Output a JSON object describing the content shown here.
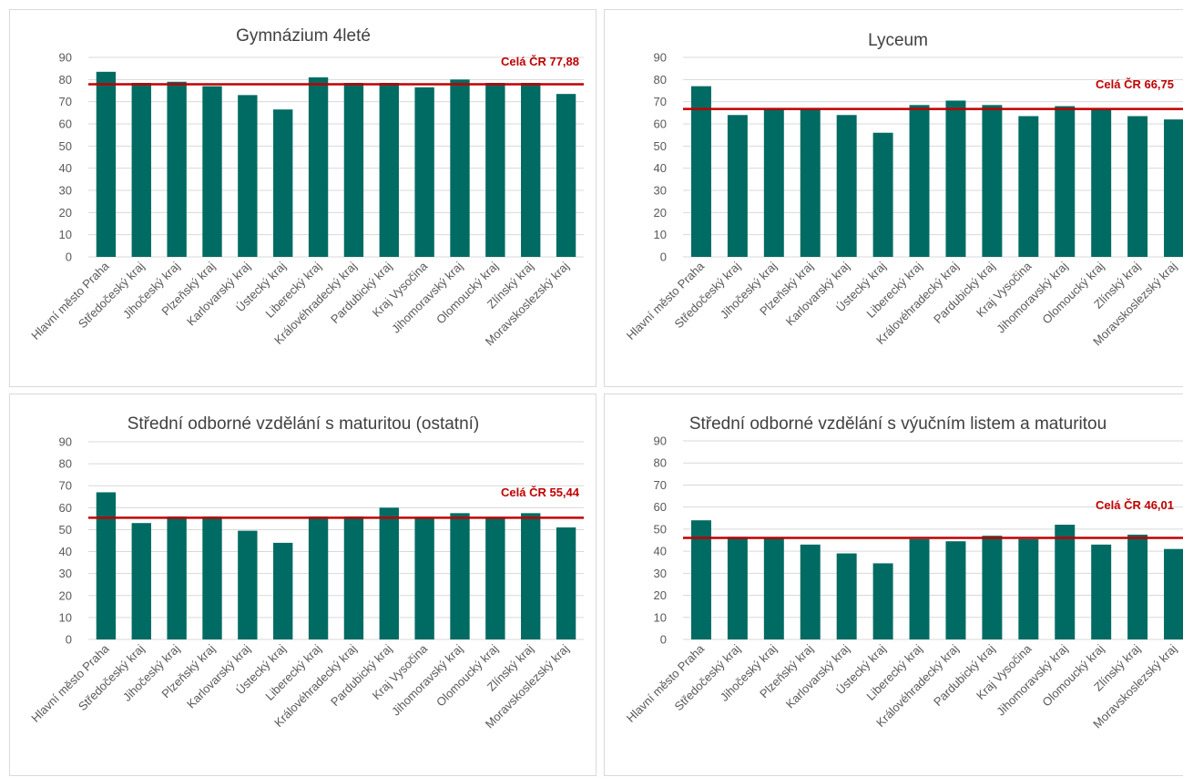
{
  "colors": {
    "bar": "#006b63",
    "reference_line": "#c00000",
    "gridline": "#d9d9d9",
    "text": "#595959"
  },
  "chart_data": [
    {
      "type": "bar",
      "title": "Gymnázium 4leté",
      "categories": [
        "Hlavní město Praha",
        "Středočeský kraj",
        "Jihočeský kraj",
        "Plzeňský kraj",
        "Karlovarský kraj",
        "Ústecký kraj",
        "Liberecký kraj",
        "Královéhradecký kraj",
        "Pardubický kraj",
        "Kraj Vysočina",
        "Jihomoravský kraj",
        "Olomoucký kraj",
        "Zlínský kraj",
        "Moravskoslezský kraj"
      ],
      "values": [
        83.5,
        78.5,
        79,
        77,
        73,
        66.5,
        81,
        78.5,
        78.5,
        76.5,
        80,
        78.5,
        78.5,
        73.5
      ],
      "reference": {
        "label": "Celá ČR 77,88",
        "value": 77.88
      },
      "ylim": [
        0,
        90
      ],
      "yticks": [
        0,
        10,
        20,
        30,
        40,
        50,
        60,
        70,
        80,
        90
      ],
      "grid": true
    },
    {
      "type": "bar",
      "title": "Lyceum",
      "categories": [
        "Hlavní město Praha",
        "Středočeský kraj",
        "Jihočeský kraj",
        "Plzeňský kraj",
        "Karlovarský kraj",
        "Ústecký kraj",
        "Liberecký kraj",
        "Královéhradecký kraj",
        "Pardubický kraj",
        "Kraj Vysočina",
        "Jihomoravský kraj",
        "Olomoucký kraj",
        "Zlínský kraj",
        "Moravskoslezský kraj"
      ],
      "values": [
        77,
        64,
        67,
        67,
        64,
        56,
        68.5,
        70.5,
        68.5,
        63.5,
        68,
        67,
        63.5,
        62
      ],
      "reference": {
        "label": "Celá ČR 66,75",
        "value": 66.75
      },
      "ylim": [
        0,
        90
      ],
      "yticks": [
        0,
        10,
        20,
        30,
        40,
        50,
        60,
        70,
        80,
        90
      ],
      "grid": true
    },
    {
      "type": "bar",
      "title": "Střední odborné vzdělání s maturitou (ostatní)",
      "categories": [
        "Hlavní město Praha",
        "Středočeský kraj",
        "Jihočeský kraj",
        "Plzeňský kraj",
        "Karlovarský kraj",
        "Ústecký kraj",
        "Liberecký kraj",
        "Královéhradecký kraj",
        "Pardubický kraj",
        "Kraj Vysočina",
        "Jihomoravský kraj",
        "Olomoucký kraj",
        "Zlínský kraj",
        "Moravskoslezský kraj"
      ],
      "values": [
        67,
        53,
        56,
        56,
        49.5,
        44,
        56,
        56,
        60,
        55.5,
        57.5,
        55,
        57.5,
        51
      ],
      "reference": {
        "label": "Celá ČR 55,44",
        "value": 55.44
      },
      "ylim": [
        0,
        90
      ],
      "yticks": [
        0,
        10,
        20,
        30,
        40,
        50,
        60,
        70,
        80,
        90
      ],
      "grid": true
    },
    {
      "type": "bar",
      "title": "Střední odborné vzdělání s výučním listem a maturitou",
      "categories": [
        "Hlavní město Praha",
        "Středočeský kraj",
        "Jihočeský kraj",
        "Plzeňský kraj",
        "Karlovarský kraj",
        "Ústecký kraj",
        "Liberecký kraj",
        "Královéhradecký kraj",
        "Pardubický kraj",
        "Kraj Vysočina",
        "Jihomoravský kraj",
        "Olomoucký kraj",
        "Zlínský kraj",
        "Moravskoslezský kraj"
      ],
      "values": [
        54,
        46.5,
        46,
        43,
        39,
        34.5,
        45.5,
        44.5,
        47,
        45.5,
        52,
        43,
        47.5,
        41
      ],
      "reference": {
        "label": "Celá ČR 46,01",
        "value": 46.01
      },
      "ylim": [
        0,
        90
      ],
      "yticks": [
        0,
        10,
        20,
        30,
        40,
        50,
        60,
        70,
        80,
        90
      ],
      "grid": true
    }
  ]
}
